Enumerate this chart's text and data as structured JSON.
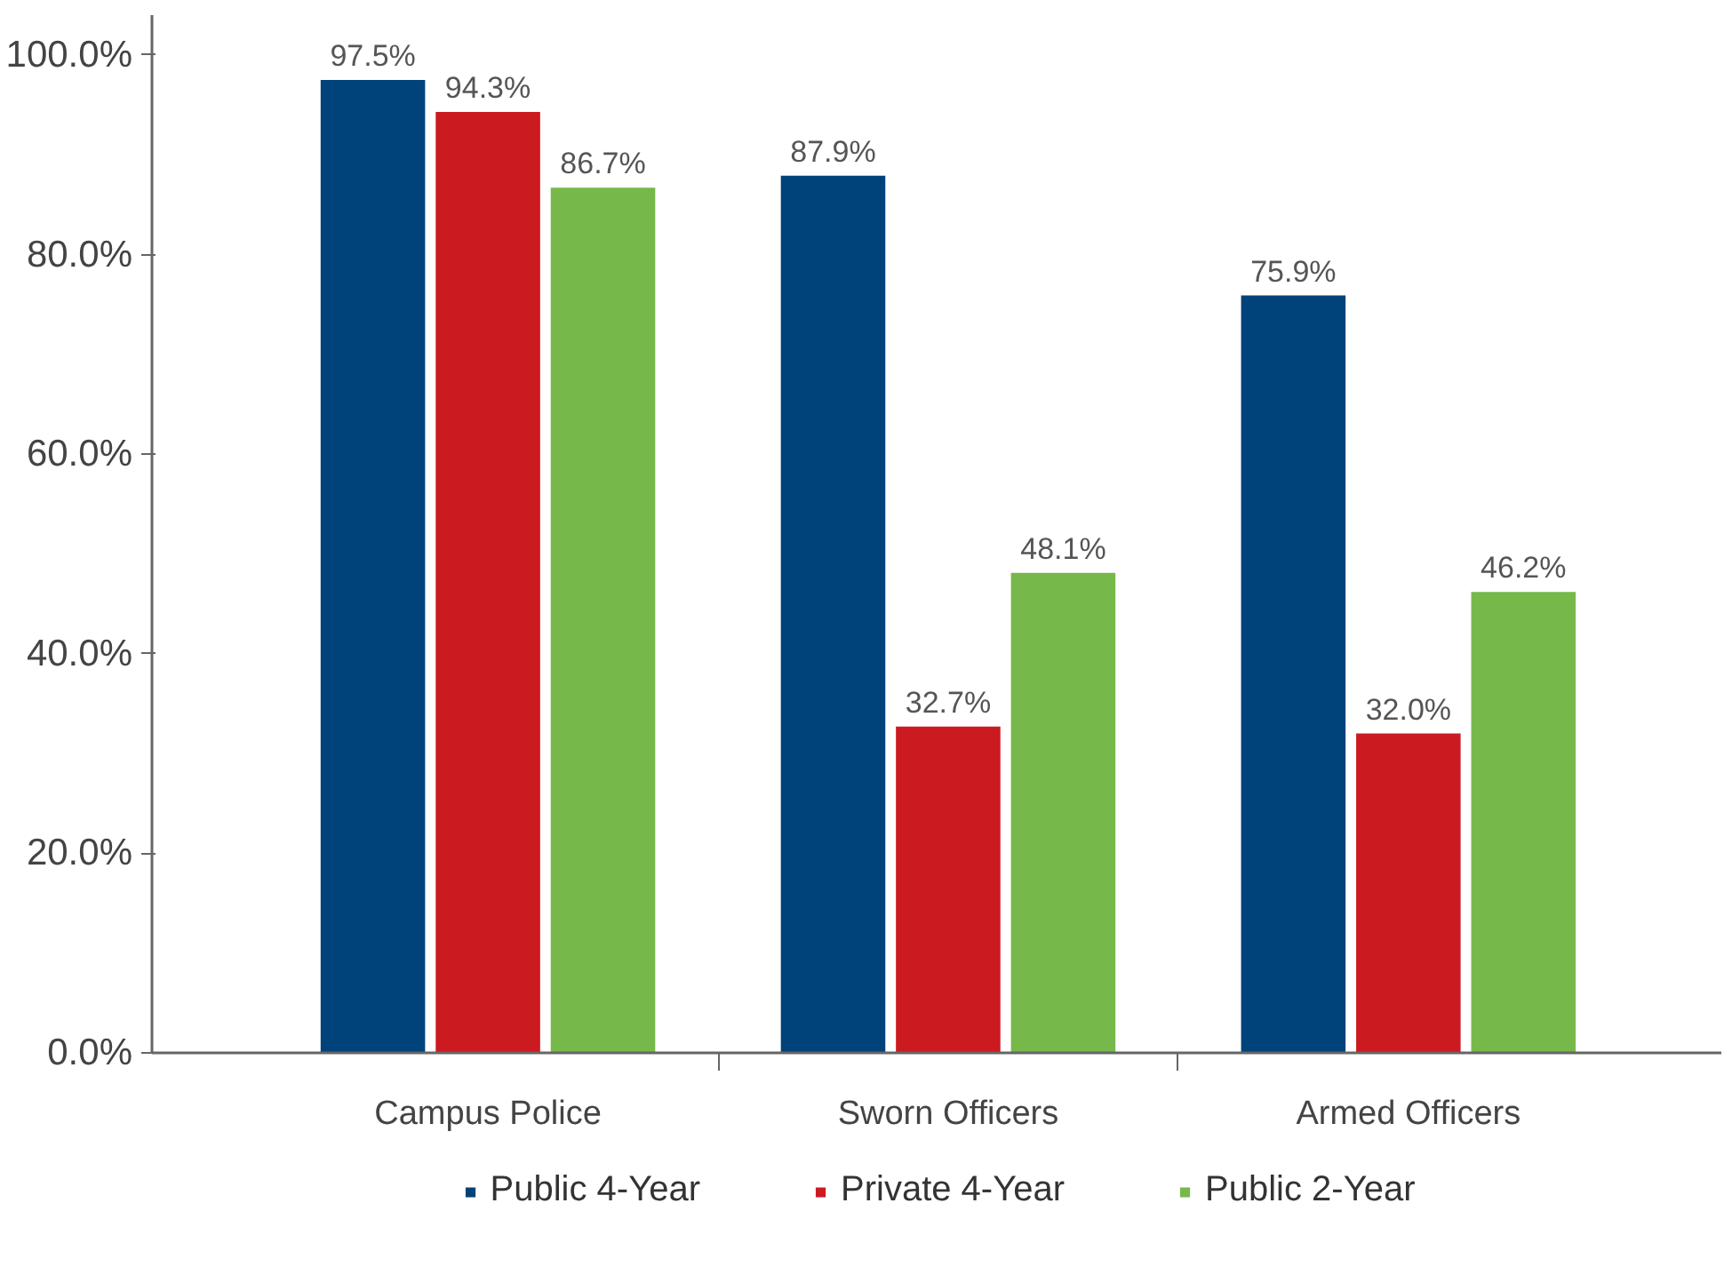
{
  "chart_data": {
    "type": "bar",
    "categories": [
      "Campus Police",
      "Sworn Officers",
      "Armed Officers"
    ],
    "series": [
      {
        "name": "Public 4-Year",
        "color": "#00427a",
        "values": [
          97.5,
          87.9,
          75.9
        ]
      },
      {
        "name": "Private 4-Year",
        "color": "#cc1a21",
        "values": [
          94.3,
          32.7,
          32.0
        ]
      },
      {
        "name": "Public 2-Year",
        "color": "#77b84a",
        "values": [
          86.7,
          48.1,
          46.2
        ]
      }
    ],
    "ylim": [
      0,
      104
    ],
    "yticks": [
      {
        "value": 0,
        "label": "0.0%"
      },
      {
        "value": 20,
        "label": "20.0%"
      },
      {
        "value": 40,
        "label": "40.0%"
      },
      {
        "value": 60,
        "label": "60.0%"
      },
      {
        "value": 80,
        "label": "80.0%"
      },
      {
        "value": 100,
        "label": "100.0%"
      }
    ],
    "value_labels": [
      [
        "97.5%",
        "87.9%",
        "75.9%"
      ],
      [
        "94.3%",
        "32.7%",
        "32.0%"
      ],
      [
        "86.7%",
        "48.1%",
        "46.2%"
      ]
    ],
    "grid": false,
    "legend": "bottom"
  }
}
